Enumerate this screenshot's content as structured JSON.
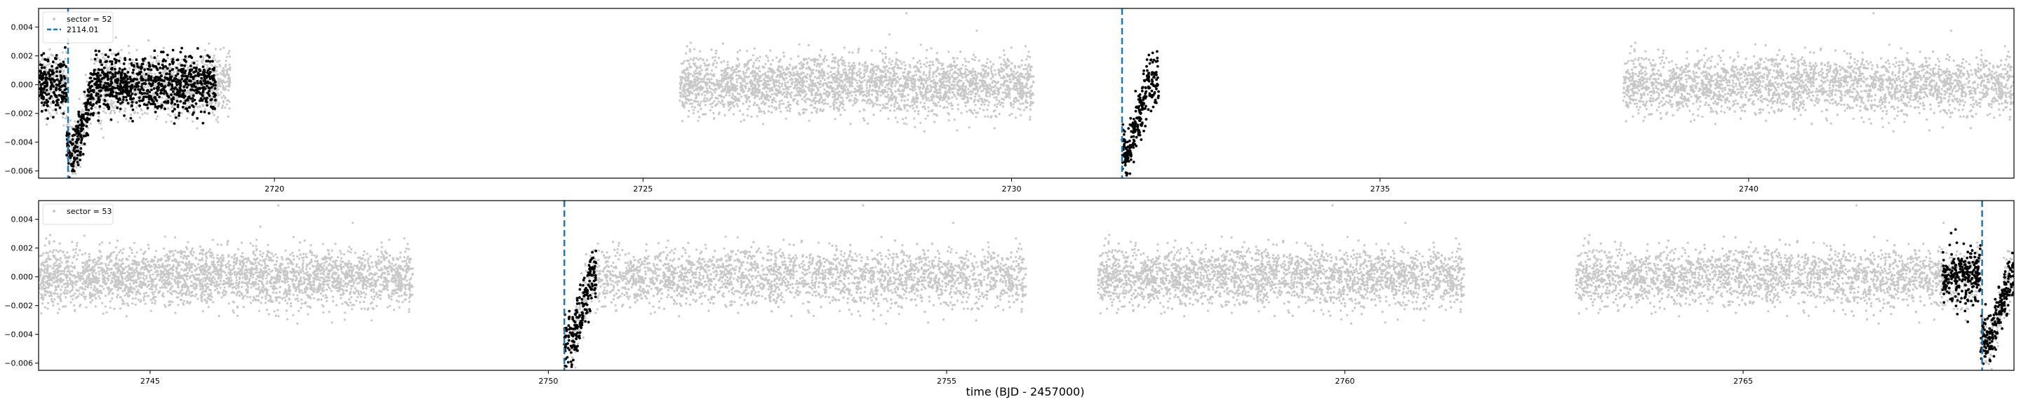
{
  "figure": {
    "xlabel": "time (BJD - 2457000)"
  },
  "chart_data": [
    {
      "type": "scatter",
      "panel": "top",
      "xlim": [
        2716.8,
        2743.6
      ],
      "ylim": [
        -0.0065,
        0.0053
      ],
      "xticks": [
        2720,
        2725,
        2730,
        2735,
        2740
      ],
      "yticks": [
        -0.006,
        -0.004,
        -0.002,
        0.0,
        0.002,
        0.004
      ],
      "ytick_labels": [
        "−0.006",
        "−0.004",
        "−0.002",
        "0.000",
        "0.002",
        "0.004"
      ],
      "legend": {
        "placement": "top-left",
        "entries": [
          "sector = 52",
          "2114.01"
        ]
      },
      "series": [
        {
          "name": "sector = 52",
          "kind": "background-flux",
          "color": "#c8c8c8",
          "segments": [
            [
              2716.8,
              2719.4
            ],
            [
              2725.5,
              2730.3
            ],
            [
              2738.3,
              2743.6
            ]
          ]
        },
        {
          "kind": "in-transit-window",
          "color": "#000000",
          "segments": [
            [
              2716.8,
              2719.2
            ],
            [
              2731.5,
              2732.0
            ]
          ]
        }
      ],
      "transit_times": [
        2717.2,
        2731.5
      ],
      "transit_depth": -0.0045
    },
    {
      "type": "scatter",
      "panel": "bottom",
      "xlim": [
        2743.6,
        2768.4
      ],
      "ylim": [
        -0.0065,
        0.0053
      ],
      "xticks": [
        2745,
        2750,
        2755,
        2760,
        2765
      ],
      "yticks": [
        -0.006,
        -0.004,
        -0.002,
        0.0,
        0.002,
        0.004
      ],
      "ytick_labels": [
        "−0.006",
        "−0.004",
        "−0.002",
        "0.000",
        "0.002",
        "0.004"
      ],
      "legend": {
        "placement": "top-left",
        "entries": [
          "sector = 53"
        ]
      },
      "series": [
        {
          "name": "sector = 53",
          "kind": "background-flux",
          "color": "#c8c8c8",
          "segments": [
            [
              2743.6,
              2748.3
            ],
            [
              2750.3,
              2756.0
            ],
            [
              2756.9,
              2761.5
            ],
            [
              2762.9,
              2768.4
            ]
          ]
        },
        {
          "kind": "in-transit-window",
          "color": "#000000",
          "segments": [
            [
              2750.2,
              2750.6
            ],
            [
              2767.5,
              2768.4
            ]
          ]
        }
      ],
      "transit_times": [
        2750.2,
        2768.0
      ],
      "transit_depth": -0.0045
    }
  ],
  "style": {
    "background_color": "#c8c8c8",
    "highlight_color": "#000000",
    "transit_line_color": "#1f77b4",
    "axis_color": "#000000"
  }
}
